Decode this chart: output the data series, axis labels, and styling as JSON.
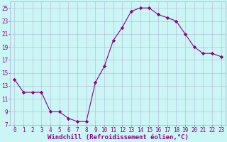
{
  "x": [
    0,
    1,
    2,
    3,
    4,
    5,
    6,
    7,
    8,
    9,
    10,
    11,
    12,
    13,
    14,
    15,
    16,
    17,
    18,
    19,
    20,
    21,
    22,
    23
  ],
  "y": [
    14,
    12,
    12,
    12,
    9,
    9,
    8,
    7.5,
    7.5,
    13.5,
    16,
    20,
    22,
    24.5,
    25,
    25,
    24,
    23.5,
    23,
    21,
    19,
    18,
    18,
    17.5
  ],
  "line_color": "#880088",
  "marker": "D",
  "marker_size": 2.2,
  "bg_color": "#ccf5f5",
  "grid_color": "#aaaacc",
  "xlabel": "Windchill (Refroidissement éolien,°C)",
  "xlabel_color": "#880088",
  "xlabel_fontsize": 6.5,
  "tick_color": "#880088",
  "tick_fontsize": 5.5,
  "ylim": [
    7,
    26
  ],
  "xlim": [
    -0.5,
    23.5
  ],
  "yticks": [
    7,
    9,
    11,
    13,
    15,
    17,
    19,
    21,
    23,
    25
  ],
  "xticks": [
    0,
    1,
    2,
    3,
    4,
    5,
    6,
    7,
    8,
    9,
    10,
    11,
    12,
    13,
    14,
    15,
    16,
    17,
    18,
    19,
    20,
    21,
    22,
    23
  ]
}
